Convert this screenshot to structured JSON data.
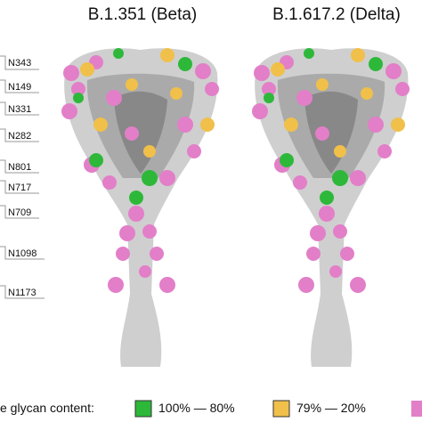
{
  "titles": [
    "B.1.351 (Beta)",
    "B.1.617.2 (Delta)"
  ],
  "site_labels": [
    "N343",
    "N149",
    "N331",
    "N282",
    "N801",
    "N717",
    "N709",
    "N1098",
    "N1173"
  ],
  "legend": {
    "title": "e glycan content:",
    "items": [
      "100% — 80%",
      "79% — 20%"
    ]
  }
}
